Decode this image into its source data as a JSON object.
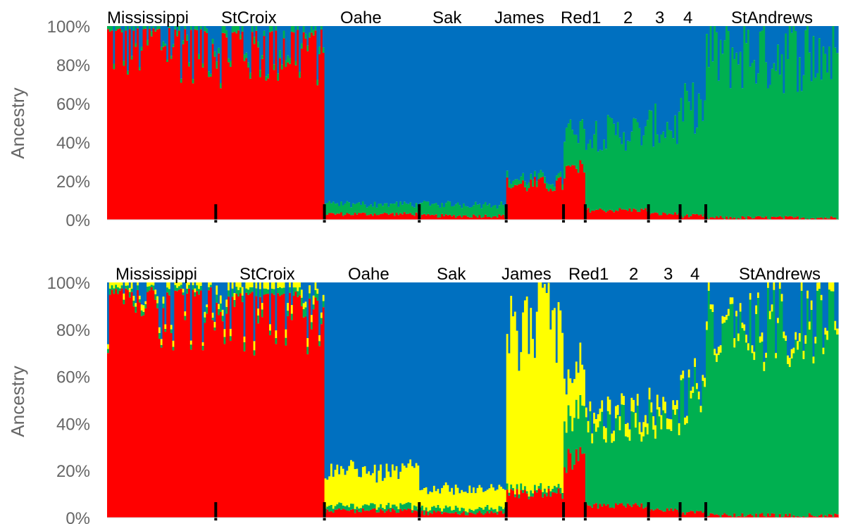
{
  "chart_data": [
    {
      "type": "bar",
      "stacked": true,
      "ylabel": "Ancestry",
      "ylim": [
        0,
        100
      ],
      "yticks": [
        "0%",
        "20%",
        "40%",
        "60%",
        "80%",
        "100%"
      ],
      "grid": false,
      "legend": "none",
      "colors": [
        "#ff0000",
        "#00b050",
        "#0070c0"
      ],
      "segments": [
        {
          "label": "Mississippi",
          "n": 55,
          "values": [
            93,
            2,
            5
          ]
        },
        {
          "label": "StCroix",
          "n": 55,
          "values": [
            90,
            3,
            7
          ]
        },
        {
          "label": "Oahe",
          "n": 48,
          "values": [
            3,
            5,
            92
          ]
        },
        {
          "label": "Sak",
          "n": 44,
          "values": [
            2,
            6,
            92
          ]
        },
        {
          "label": "James",
          "n": 29,
          "values": [
            18,
            3,
            79
          ]
        },
        {
          "label": "Red1",
          "n": 11,
          "values": [
            25,
            20,
            55
          ]
        },
        {
          "label": "2",
          "n": 32,
          "values": [
            5,
            40,
            55
          ]
        },
        {
          "label": "3",
          "n": 16,
          "values": [
            3,
            45,
            52
          ]
        },
        {
          "label": "4",
          "n": 13,
          "values": [
            2,
            55,
            43
          ]
        },
        {
          "label": "StAndrews",
          "n": 67,
          "values": [
            1,
            85,
            14
          ]
        }
      ]
    },
    {
      "type": "bar",
      "stacked": true,
      "ylabel": "Ancestry",
      "ylim": [
        0,
        100
      ],
      "yticks": [
        "0%",
        "20%",
        "40%",
        "60%",
        "80%",
        "100%"
      ],
      "grid": false,
      "legend": "none",
      "colors": [
        "#ff0000",
        "#00b050",
        "#ffff00",
        "#0070c0"
      ],
      "segments": [
        {
          "label": "Mississippi",
          "n": 55,
          "values": [
            93,
            2,
            2,
            3
          ]
        },
        {
          "label": "StCroix",
          "n": 55,
          "values": [
            90,
            3,
            3,
            4
          ]
        },
        {
          "label": "Oahe",
          "n": 48,
          "values": [
            3,
            2,
            15,
            80
          ]
        },
        {
          "label": "Sak",
          "n": 44,
          "values": [
            2,
            2,
            8,
            88
          ]
        },
        {
          "label": "James",
          "n": 29,
          "values": [
            10,
            2,
            70,
            18
          ]
        },
        {
          "label": "Red1",
          "n": 11,
          "values": [
            25,
            20,
            20,
            35
          ]
        },
        {
          "label": "2",
          "n": 32,
          "values": [
            5,
            35,
            5,
            55
          ]
        },
        {
          "label": "3",
          "n": 16,
          "values": [
            3,
            40,
            5,
            52
          ]
        },
        {
          "label": "4",
          "n": 13,
          "values": [
            2,
            50,
            3,
            45
          ]
        },
        {
          "label": "StAndrews",
          "n": 67,
          "values": [
            1,
            80,
            3,
            16
          ]
        }
      ]
    }
  ]
}
